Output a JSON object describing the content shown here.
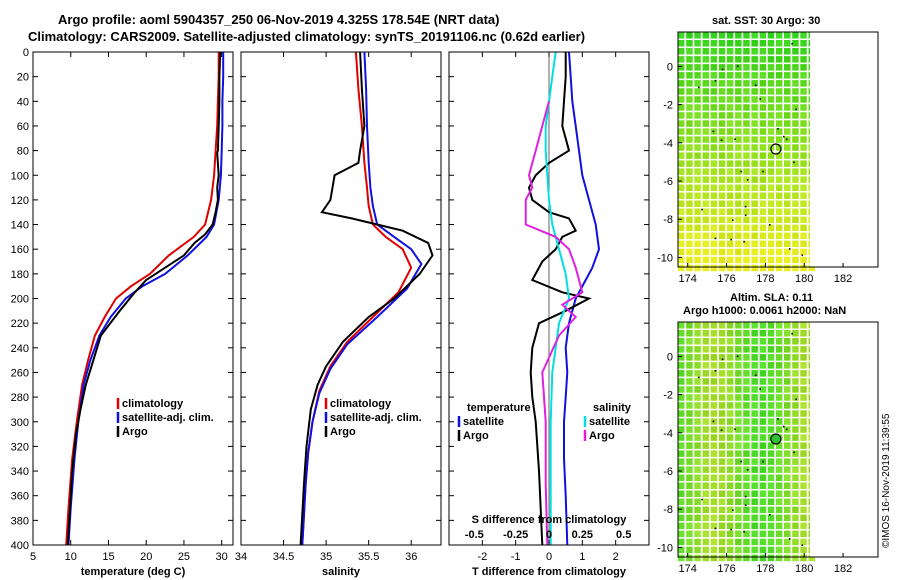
{
  "title_line1": "Argo profile: aoml 5904357_250 06-Nov-2019 4.325S 178.54E (NRT data)",
  "title_line2": "Climatology: CARS2009. Satellite-adjusted climatology: synTS_20191106.nc (0.62d earlier)",
  "credit": "©IMOS 16-Nov-2019 11:39:55",
  "colors": {
    "climatology": "#e00000",
    "satellite": "#1010e0",
    "argo": "#000000",
    "sat_s": "#00e0e0",
    "argo_s": "#e020e0"
  },
  "chart_data": [
    {
      "type": "line",
      "name": "temperature",
      "xlabel": "temperature (deg C)",
      "ylabel": "",
      "xlim": [
        5,
        31.5
      ],
      "ylim": [
        0,
        400
      ],
      "yreversed": true,
      "xticks": [
        5,
        10,
        15,
        20,
        25,
        30
      ],
      "yticks": [
        0,
        20,
        40,
        60,
        80,
        100,
        120,
        140,
        160,
        180,
        200,
        220,
        240,
        260,
        280,
        300,
        320,
        340,
        360,
        380,
        400
      ],
      "legend": [
        "climatology",
        "satellite-adj. clim.",
        "Argo"
      ],
      "series": [
        {
          "name": "climatology",
          "color": "#e00000",
          "x": [
            29.6,
            29.6,
            29.5,
            29.4,
            29.2,
            29.0,
            28.6,
            27.8,
            26.3,
            23.0,
            20.5,
            18.0,
            16.0,
            14.5,
            13.2,
            12.3,
            11.5,
            10.8,
            10.2,
            9.7,
            9.4
          ],
          "y": [
            0,
            20,
            40,
            60,
            80,
            100,
            120,
            140,
            150,
            165,
            180,
            190,
            200,
            215,
            230,
            250,
            270,
            300,
            330,
            370,
            400
          ]
        },
        {
          "name": "satellite-adj. clim.",
          "color": "#1010e0",
          "x": [
            30.2,
            30.2,
            30.1,
            30.1,
            30.0,
            29.9,
            29.6,
            29.0,
            28.0,
            25.5,
            22.5,
            19.5,
            17.3,
            15.3,
            13.8,
            12.6,
            11.7,
            11.0,
            10.5,
            10.0,
            9.7
          ],
          "y": [
            0,
            20,
            40,
            60,
            80,
            100,
            120,
            140,
            150,
            165,
            180,
            190,
            200,
            215,
            230,
            250,
            270,
            300,
            330,
            370,
            400
          ]
        },
        {
          "name": "Argo",
          "color": "#000000",
          "x": [
            29.8,
            29.7,
            29.7,
            29.6,
            29.5,
            29.4,
            29.6,
            29.4,
            29.5,
            29.2,
            28.8,
            27.8,
            26.4,
            25.0,
            22.5,
            20.0,
            18.5,
            16.5,
            14.0,
            13.0,
            12.0,
            11.3,
            10.7,
            10.2,
            9.9,
            9.6
          ],
          "y": [
            0,
            20,
            40,
            60,
            80,
            82,
            100,
            110,
            120,
            130,
            140,
            148,
            155,
            165,
            175,
            185,
            195,
            210,
            230,
            250,
            270,
            290,
            310,
            340,
            370,
            400
          ]
        }
      ]
    },
    {
      "type": "line",
      "name": "salinity",
      "xlabel": "salinity",
      "xlim": [
        34.0,
        36.35
      ],
      "ylim": [
        0,
        400
      ],
      "yreversed": true,
      "xticks": [
        34,
        34.5,
        35,
        35.5,
        36
      ],
      "legend": [
        "climatology",
        "satellite-adj. clim.",
        "Argo"
      ],
      "series": [
        {
          "name": "climatology",
          "color": "#e00000",
          "x": [
            35.35,
            35.38,
            35.42,
            35.45,
            35.48,
            35.5,
            35.55,
            35.7,
            35.9,
            36.0,
            35.85,
            35.55,
            35.25,
            35.05,
            34.92,
            34.84,
            34.79,
            34.76,
            34.74,
            34.72
          ],
          "y": [
            0,
            30,
            60,
            90,
            110,
            125,
            140,
            150,
            160,
            175,
            195,
            215,
            235,
            255,
            275,
            300,
            325,
            350,
            375,
            400
          ]
        },
        {
          "name": "satellite-adj. clim.",
          "color": "#1010e0",
          "x": [
            35.45,
            35.47,
            35.48,
            35.5,
            35.52,
            35.55,
            35.6,
            35.8,
            36.0,
            36.12,
            35.95,
            35.6,
            35.25,
            35.05,
            34.92,
            34.84,
            34.79,
            34.76,
            34.74,
            34.72
          ],
          "y": [
            0,
            30,
            60,
            90,
            110,
            125,
            140,
            150,
            160,
            172,
            192,
            215,
            237,
            257,
            277,
            300,
            325,
            350,
            375,
            400
          ]
        },
        {
          "name": "Argo",
          "color": "#000000",
          "x": [
            35.4,
            35.42,
            35.45,
            35.4,
            35.38,
            35.1,
            35.05,
            34.95,
            35.3,
            35.6,
            35.9,
            36.2,
            36.25,
            36.1,
            35.8,
            35.5,
            35.2,
            35.0,
            34.9,
            34.82,
            34.77,
            34.74,
            34.72,
            34.7
          ],
          "y": [
            0,
            30,
            60,
            80,
            90,
            100,
            120,
            130,
            135,
            140,
            145,
            155,
            165,
            180,
            200,
            215,
            235,
            255,
            270,
            290,
            320,
            350,
            375,
            400
          ]
        }
      ]
    },
    {
      "type": "line",
      "name": "differences",
      "xlabel": "T difference from climatology",
      "xlabel_top": "S difference from climatology",
      "xlim": [
        -3.0,
        3.0
      ],
      "ylim": [
        0,
        400
      ],
      "yreversed": true,
      "xticks": [
        -2,
        -1,
        0,
        1,
        2
      ],
      "xticks_top": [
        "-0.5",
        "-0.25",
        "0",
        "0.25",
        "0.5"
      ],
      "legend_left_title": "temperature",
      "legend_right_title": "salinity",
      "legend": [
        "satellite",
        "Argo",
        "satellite",
        "Argo"
      ],
      "series": [
        {
          "name": "satellite T",
          "color": "#1010e0",
          "x": [
            0.6,
            0.65,
            0.7,
            0.8,
            0.9,
            1.0,
            1.2,
            1.4,
            1.5,
            1.3,
            1.1,
            0.8,
            0.6,
            0.5,
            0.55,
            0.5,
            0.45,
            0.45,
            0.5,
            0.55
          ],
          "y": [
            0,
            20,
            40,
            60,
            80,
            100,
            120,
            140,
            160,
            175,
            185,
            200,
            220,
            240,
            260,
            280,
            300,
            330,
            360,
            400
          ]
        },
        {
          "name": "Argo T",
          "color": "#000000",
          "x": [
            0.5,
            0.5,
            0.45,
            0.4,
            0.6,
            0.0,
            -0.4,
            -0.6,
            -0.5,
            0.0,
            0.6,
            0.8,
            0.4,
            0.2,
            -0.2,
            -0.5,
            0.4,
            1.2,
            0.5,
            -0.3,
            -0.5,
            -0.55,
            -0.5,
            -0.4,
            -0.3,
            -0.2
          ],
          "y": [
            0,
            20,
            40,
            60,
            80,
            90,
            100,
            110,
            120,
            130,
            135,
            145,
            150,
            160,
            170,
            185,
            195,
            200,
            210,
            220,
            240,
            260,
            280,
            300,
            340,
            400
          ]
        },
        {
          "name": "satellite S",
          "color": "#00e0e0",
          "x": [
            0.2,
            0.1,
            0.0,
            -0.1,
            -0.1,
            -0.05,
            0.0,
            0.1,
            0.3,
            0.5,
            0.6,
            0.3,
            0.2,
            0.1,
            0.05,
            0.05,
            0.05
          ],
          "y": [
            0,
            20,
            40,
            60,
            80,
            100,
            120,
            140,
            160,
            180,
            200,
            220,
            240,
            260,
            300,
            350,
            400
          ]
        },
        {
          "name": "Argo S",
          "color": "#e020e0",
          "x": [
            0.0,
            -0.2,
            -0.4,
            -0.6,
            -0.5,
            -0.7,
            -0.7,
            0.2,
            0.6,
            0.8,
            1.0,
            0.4,
            0.8,
            0.3,
            -0.2,
            -0.1,
            -0.1,
            -0.05
          ],
          "y": [
            40,
            60,
            80,
            100,
            110,
            120,
            140,
            150,
            160,
            175,
            195,
            205,
            215,
            230,
            260,
            300,
            350,
            400
          ]
        }
      ]
    },
    {
      "type": "heatmap",
      "name": "sst-map",
      "title": "sat. SST: 30 Argo: 30",
      "xlim": [
        173.5,
        183.8
      ],
      "ylim": [
        -10.5,
        1.8
      ],
      "xticks": [
        174,
        176,
        178,
        180,
        182
      ],
      "yticks": [
        0,
        -2,
        -4,
        -6,
        -8,
        -10
      ],
      "argo_position": [
        178.54,
        -4.325
      ]
    },
    {
      "type": "heatmap",
      "name": "sla-map",
      "title_line1": "Altim. SLA: 0.11",
      "title_line2": "Argo h1000: 0.0061 h2000: NaN",
      "xlim": [
        173.5,
        183.8
      ],
      "ylim": [
        -10.5,
        1.8
      ],
      "xticks": [
        174,
        176,
        178,
        180,
        182
      ],
      "yticks": [
        0,
        -2,
        -4,
        -6,
        -8,
        -10
      ],
      "argo_position": [
        178.54,
        -4.325
      ]
    }
  ]
}
